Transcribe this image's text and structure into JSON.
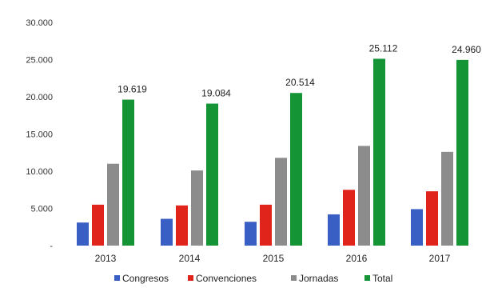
{
  "chart_data": {
    "type": "bar",
    "title": "",
    "xlabel": "",
    "ylabel": "",
    "categories": [
      "2013",
      "2014",
      "2015",
      "2016",
      "2017"
    ],
    "ylim": [
      0,
      30000
    ],
    "yticks": [
      0,
      5000,
      10000,
      15000,
      20000,
      25000,
      30000
    ],
    "ytick_labels": [
      "-",
      "5.000",
      "10.000",
      "15.000",
      "20.000",
      "25.000",
      "30.000"
    ],
    "grid": false,
    "legend_position": "bottom",
    "series": [
      {
        "name": "Congresos",
        "color": "#3a5fc4",
        "values": [
          3100,
          3600,
          3200,
          4200,
          4900
        ]
      },
      {
        "name": "Convenciones",
        "color": "#e0241c",
        "values": [
          5500,
          5400,
          5500,
          7500,
          7300
        ]
      },
      {
        "name": "Jornadas",
        "color": "#8c8c8c",
        "values": [
          11000,
          10100,
          11800,
          13400,
          12600
        ]
      },
      {
        "name": "Total",
        "color": "#159436",
        "values": [
          19619,
          19084,
          20514,
          25112,
          24960
        ]
      }
    ],
    "data_labels": {
      "series": "Total",
      "labels": [
        "19.619",
        "19.084",
        "20.514",
        "25.112",
        "24.960"
      ]
    }
  }
}
